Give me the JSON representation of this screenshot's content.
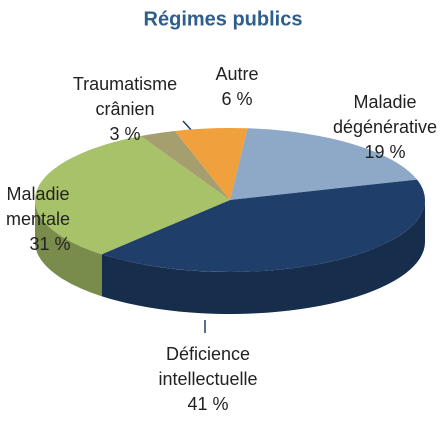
{
  "chart_data": {
    "type": "pie",
    "title": "Régimes publics",
    "categories": [
      "Maladie dégénérative",
      "Déficience intellectuelle",
      "Maladie mentale",
      "Traumatisme crânien",
      "Autre"
    ],
    "values": [
      19,
      41,
      31,
      3,
      6
    ],
    "value_labels": [
      "19 %",
      "41 %",
      "31 %",
      "3 %",
      "6 %"
    ],
    "colors": [
      "#8ea8c8",
      "#1f3e69",
      "#a8c26a",
      "#a59f70",
      "#f0a03c"
    ]
  }
}
